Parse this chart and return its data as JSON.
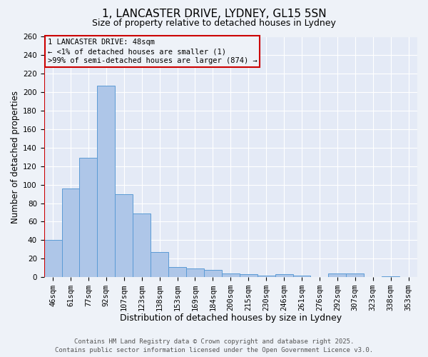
{
  "title_line1": "1, LANCASTER DRIVE, LYDNEY, GL15 5SN",
  "title_line2": "Size of property relative to detached houses in Lydney",
  "xlabel": "Distribution of detached houses by size in Lydney",
  "ylabel": "Number of detached properties",
  "bar_labels": [
    "46sqm",
    "61sqm",
    "77sqm",
    "92sqm",
    "107sqm",
    "123sqm",
    "138sqm",
    "153sqm",
    "169sqm",
    "184sqm",
    "200sqm",
    "215sqm",
    "230sqm",
    "246sqm",
    "261sqm",
    "276sqm",
    "292sqm",
    "307sqm",
    "323sqm",
    "338sqm",
    "353sqm"
  ],
  "bar_values": [
    40,
    96,
    129,
    207,
    90,
    69,
    27,
    11,
    9,
    8,
    4,
    3,
    2,
    3,
    2,
    0,
    4,
    4,
    0,
    1,
    0
  ],
  "bar_color": "#aec6e8",
  "bar_edge_color": "#5b9bd5",
  "highlight_line_color": "#cc0000",
  "annotation_text": "1 LANCASTER DRIVE: 48sqm\n← <1% of detached houses are smaller (1)\n>99% of semi-detached houses are larger (874) →",
  "annotation_box_color": "#cc0000",
  "ylim": [
    0,
    260
  ],
  "yticks": [
    0,
    20,
    40,
    60,
    80,
    100,
    120,
    140,
    160,
    180,
    200,
    220,
    240,
    260
  ],
  "footer_line1": "Contains HM Land Registry data © Crown copyright and database right 2025.",
  "footer_line2": "Contains public sector information licensed under the Open Government Licence v3.0.",
  "background_color": "#eef2f8",
  "plot_bg_color": "#e4eaf6",
  "grid_color": "#ffffff",
  "title_fontsize": 11,
  "subtitle_fontsize": 9,
  "xlabel_fontsize": 9,
  "ylabel_fontsize": 8.5,
  "tick_fontsize": 7.5,
  "footer_fontsize": 6.5
}
